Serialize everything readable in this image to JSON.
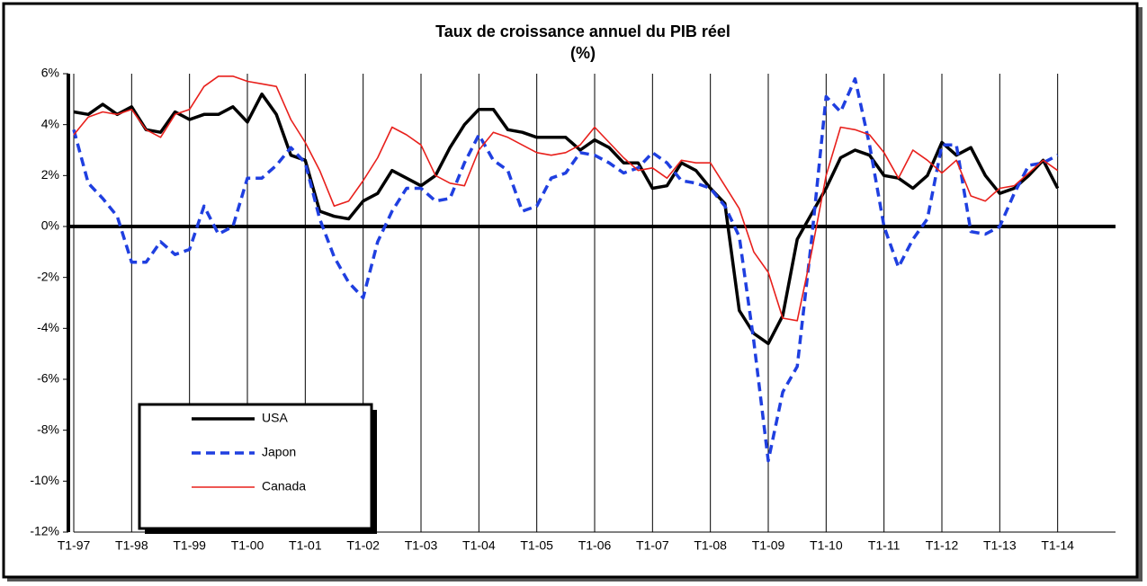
{
  "chart_data": {
    "type": "line",
    "title": "Taux de croissance annuel du PIB réel",
    "subtitle": "(%)",
    "categories": [
      "T1-97",
      null,
      null,
      null,
      "T1-98",
      null,
      null,
      null,
      "T1-99",
      null,
      null,
      null,
      "T1-00",
      null,
      null,
      null,
      "T1-01",
      null,
      null,
      null,
      "T1-02",
      null,
      null,
      null,
      "T1-03",
      null,
      null,
      null,
      "T1-04",
      null,
      null,
      null,
      "T1-05",
      null,
      null,
      null,
      "T1-06",
      null,
      null,
      null,
      "T1-07",
      null,
      null,
      null,
      "T1-08",
      null,
      null,
      null,
      "T1-09",
      null,
      null,
      null,
      "T1-10",
      null,
      null,
      null,
      "T1-11",
      null,
      null,
      null,
      "T1-12",
      null,
      null,
      null,
      "T1-13",
      null,
      null,
      null,
      "T1-14",
      null,
      null,
      null
    ],
    "series": [
      {
        "name": "USA",
        "color": "#000000",
        "style": "solid",
        "values": [
          4.5,
          4.4,
          4.8,
          4.4,
          4.7,
          3.8,
          3.7,
          4.5,
          4.2,
          4.4,
          4.4,
          4.7,
          4.1,
          5.2,
          4.4,
          2.8,
          2.6,
          0.6,
          0.4,
          0.3,
          1.0,
          1.3,
          2.2,
          1.9,
          1.6,
          2.0,
          3.1,
          4.0,
          4.6,
          4.6,
          3.8,
          3.7,
          3.5,
          3.5,
          3.5,
          3.0,
          3.4,
          3.1,
          2.5,
          2.5,
          1.5,
          1.6,
          2.5,
          2.2,
          1.5,
          0.9,
          -3.3,
          -4.2,
          -4.6,
          -3.5,
          -0.5,
          0.5,
          1.5,
          2.7,
          3.0,
          2.8,
          2.0,
          1.9,
          1.5,
          2.0,
          3.3,
          2.8,
          3.1,
          2.0,
          1.3,
          1.5,
          2.0,
          2.6,
          1.5,
          null,
          null,
          null
        ]
      },
      {
        "name": "Japon",
        "color": "#1f3fe0",
        "style": "dashed",
        "values": [
          3.8,
          1.7,
          1.1,
          0.4,
          -1.4,
          -1.4,
          -0.6,
          -1.1,
          -0.9,
          0.8,
          -0.3,
          0.0,
          1.9,
          1.9,
          2.4,
          3.1,
          2.5,
          0.3,
          -1.2,
          -2.2,
          -2.8,
          -0.6,
          0.6,
          1.5,
          1.5,
          1.0,
          1.1,
          2.5,
          3.6,
          2.6,
          2.2,
          0.6,
          0.8,
          1.9,
          2.1,
          2.9,
          2.8,
          2.5,
          2.1,
          2.3,
          2.9,
          2.5,
          1.8,
          1.7,
          1.5,
          0.8,
          -0.4,
          -4.5,
          -9.2,
          -6.5,
          -5.5,
          -0.5,
          5.1,
          4.5,
          5.8,
          3.2,
          0.0,
          -1.6,
          -0.5,
          0.3,
          3.2,
          3.2,
          -0.2,
          -0.3,
          0.0,
          1.3,
          2.4,
          2.5,
          2.8,
          null,
          null,
          null
        ]
      },
      {
        "name": "Canada",
        "color": "#e8201c",
        "style": "thin",
        "values": [
          3.6,
          4.3,
          4.5,
          4.4,
          4.6,
          3.8,
          3.5,
          4.4,
          4.6,
          5.5,
          5.9,
          5.9,
          5.7,
          5.6,
          5.5,
          4.2,
          3.3,
          2.2,
          0.8,
          1.0,
          1.8,
          2.7,
          3.9,
          3.6,
          3.2,
          2.0,
          1.7,
          1.6,
          3.0,
          3.7,
          3.5,
          3.2,
          2.9,
          2.8,
          2.9,
          3.2,
          3.9,
          3.3,
          2.7,
          2.2,
          2.3,
          1.9,
          2.6,
          2.5,
          2.5,
          1.6,
          0.7,
          -1.0,
          -1.8,
          -3.6,
          -3.7,
          -1.0,
          2.0,
          3.9,
          3.8,
          3.6,
          2.9,
          1.9,
          3.0,
          2.6,
          2.1,
          2.6,
          1.2,
          1.0,
          1.5,
          1.6,
          2.1,
          2.6,
          2.2,
          null,
          null,
          null
        ]
      }
    ],
    "ylim": [
      -12,
      6
    ],
    "yticks": [
      {
        "value": -12,
        "label": "-12%"
      },
      {
        "value": -10,
        "label": "-10%"
      },
      {
        "value": -8,
        "label": "-8%"
      },
      {
        "value": -6,
        "label": "-6%"
      },
      {
        "value": -4,
        "label": "-4%"
      },
      {
        "value": -2,
        "label": "-2%"
      },
      {
        "value": 0,
        "label": "0%"
      },
      {
        "value": 2,
        "label": "2%"
      },
      {
        "value": 4,
        "label": "4%"
      },
      {
        "value": 6,
        "label": "6%"
      }
    ],
    "grid": true,
    "legend": "lower-left"
  }
}
